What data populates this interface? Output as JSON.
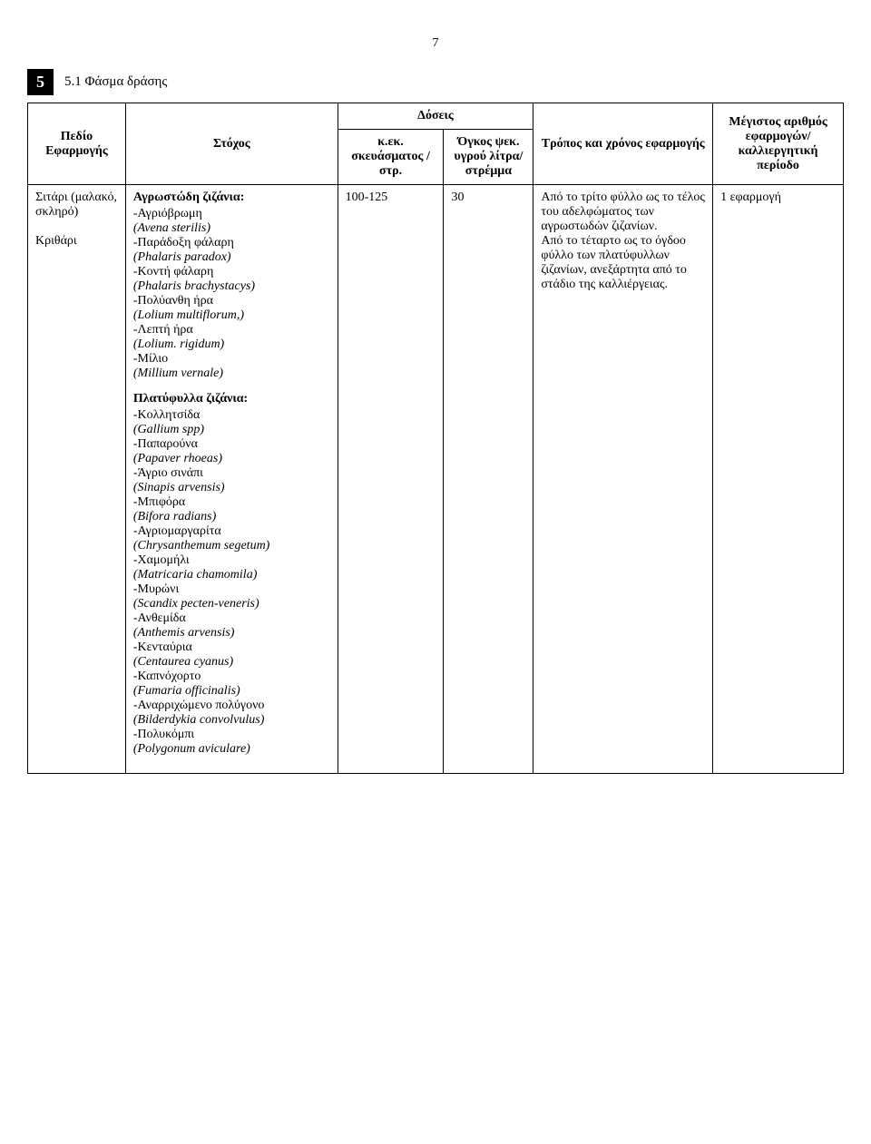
{
  "page_number": "7",
  "section": {
    "badge": "5",
    "title": "5.1 Φάσμα δράσης"
  },
  "table": {
    "headers": {
      "field": "Πεδίο Εφαρμογής",
      "target": "Στόχος",
      "doses_group": "Δόσεις",
      "dose_cc": "κ.εκ. σκευάσματος /στρ.",
      "dose_volume": "Όγκος ψεκ. υγρού λίτρα/ στρέμμα",
      "method": "Τρόπος και χρόνος εφαρμογής",
      "max": "Μέγιστος αριθμός εφαρμογών/ καλλιεργητική περίοδο"
    },
    "row": {
      "field_lines": [
        "Σιτάρι (μαλακό, σκληρό)",
        "",
        "Κριθάρι"
      ],
      "grass_title": "Αγρωστώδη ζιζάνια:",
      "grass_weeds": [
        {
          "gr": "-Αγριόβρωμη",
          "sci": "(Avena sterilis)"
        },
        {
          "gr": "-Παράδοξη φάλαρη",
          "sci": "(Phalaris paradox)"
        },
        {
          "gr": "-Κοντή φάλαρη",
          "sci": "(Phalaris brachystacys)"
        },
        {
          "gr": "-Πολύανθη ήρα",
          "sci": "(Lolium multiflorum,)"
        },
        {
          "gr": "-Λεπτή ήρα",
          "sci": "(Lolium. rigidum)"
        },
        {
          "gr": "-Μίλιο",
          "sci": "(Millium vernale)"
        }
      ],
      "broad_title": "Πλατύφυλλα ζιζάνια:",
      "broad_weeds": [
        {
          "gr": "-Κολλητσίδα",
          "sci": "(Gallium spp)"
        },
        {
          "gr": "-Παπαρούνα",
          "sci": "(Papaver rhoeas)"
        },
        {
          "gr": "-Άγριο σινάπι",
          "sci": "(Sinapis arvensis)"
        },
        {
          "gr": "-Μπιφόρα",
          "sci": "(Bifora radians)"
        },
        {
          "gr": "-Αγριομαργαρίτα",
          "sci": "(Chrysanthemum segetum)"
        },
        {
          "gr": "-Χαμομήλι",
          "sci": "(Matricaria chamomila)"
        },
        {
          "gr": "-Μυρώνι",
          "sci": "(Scandix pecten-veneris)"
        },
        {
          "gr": "-Ανθεμίδα",
          "sci": "(Anthemis arvensis)"
        },
        {
          "gr": "-Κενταύρια",
          "sci": "(Centaurea cyanus)"
        },
        {
          "gr": "-Καπνόχορτο",
          "sci": "(Fumaria officinalis)"
        },
        {
          "gr": "-Αναρριχώμενο πολύγονο",
          "sci": "(Bilderdykia convolvulus)"
        },
        {
          "gr": "-Πολυκόμπι",
          "sci": "(Polygonum aviculare)"
        }
      ],
      "dose_cc": "100-125",
      "dose_vol": "30",
      "method_text": "Από το τρίτο φύλλο ως το τέλος του αδελφώματος των αγρωστωδών ζιζανίων.\n Από το τέταρτο ως το όγδοο φύλλο των πλατύφυλλων ζιζανίων, ανεξάρτητα από το στάδιο της καλλιέργειας.",
      "max_apps": "1 εφαρμογή"
    }
  }
}
